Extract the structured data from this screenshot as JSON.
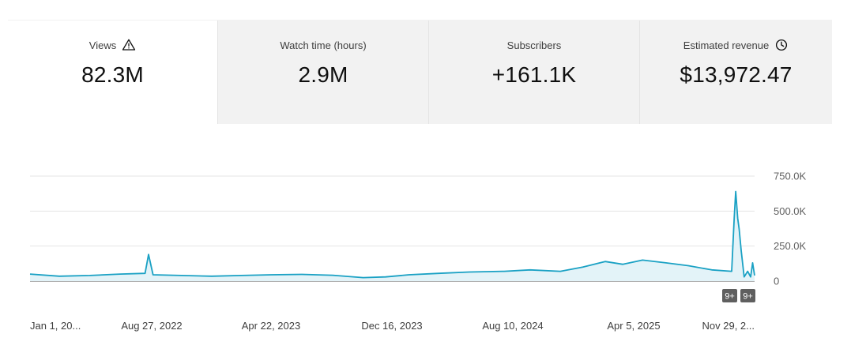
{
  "metrics": [
    {
      "label": "Views",
      "value": "82.3M",
      "icon": "warning-icon"
    },
    {
      "label": "Watch time (hours)",
      "value": "2.9M"
    },
    {
      "label": "Subscribers",
      "value": "+161.1K"
    },
    {
      "label": "Estimated revenue",
      "value": "$13,972.47",
      "icon": "clock-icon"
    }
  ],
  "chart_data": {
    "type": "area",
    "series": [
      {
        "x": [
          "Jan 1, 2022",
          "Mar 1, 2022",
          "May 1, 2022",
          "Jul 1, 2022",
          "Aug 20, 2022",
          "Aug 27, 2022",
          "Sep 5, 2022",
          "Nov 1, 2022",
          "Jan 1, 2023",
          "Mar 1, 2023",
          "May 1, 2023",
          "Jul 1, 2023",
          "Sep 1, 2023",
          "Nov 1, 2023",
          "Dec 16, 2023",
          "Feb 1, 2024",
          "Apr 1, 2024",
          "Jun 1, 2024",
          "Aug 10, 2024",
          "Oct 1, 2024",
          "Dec 1, 2024",
          "Jan 15, 2025",
          "Mar 1, 2025",
          "Apr 5, 2025",
          "May 15, 2025",
          "Jul 1, 2025",
          "Aug 15, 2025",
          "Oct 1, 2025",
          "Nov 10, 2025",
          "Nov 15, 2025",
          "Nov 18, 2025",
          "Nov 22, 2025",
          "Nov 25, 2025",
          "Nov 29, 2025",
          "Dec 5, 2025",
          "Dec 12, 2025",
          "Dec 18, 2025",
          "Dec 22, 2025",
          "Dec 26, 2025"
        ],
        "values": [
          50000,
          35000,
          40000,
          50000,
          55000,
          190000,
          45000,
          40000,
          35000,
          40000,
          45000,
          48000,
          42000,
          25000,
          30000,
          45000,
          55000,
          65000,
          70000,
          80000,
          70000,
          100000,
          140000,
          120000,
          150000,
          130000,
          110000,
          80000,
          70000,
          450000,
          640000,
          450000,
          370000,
          220000,
          30000,
          70000,
          30000,
          130000,
          40000
        ]
      }
    ],
    "yticks": [
      "750.0K",
      "500.0K",
      "250.0K",
      "0"
    ],
    "ylim": [
      0,
      750000
    ],
    "xticks": [
      "Jan 1, 20...",
      "Aug 27, 2022",
      "Apr 22, 2023",
      "Dec 16, 2023",
      "Aug 10, 2024",
      "Apr 5, 2025",
      "Nov 29, 2..."
    ],
    "xlim": [
      "Jan 1, 2022",
      "Dec 26, 2025"
    ],
    "badges": [
      "9+",
      "9+"
    ],
    "grid": true,
    "color": "#1aa1c4",
    "fill": "#e3f3f8"
  }
}
